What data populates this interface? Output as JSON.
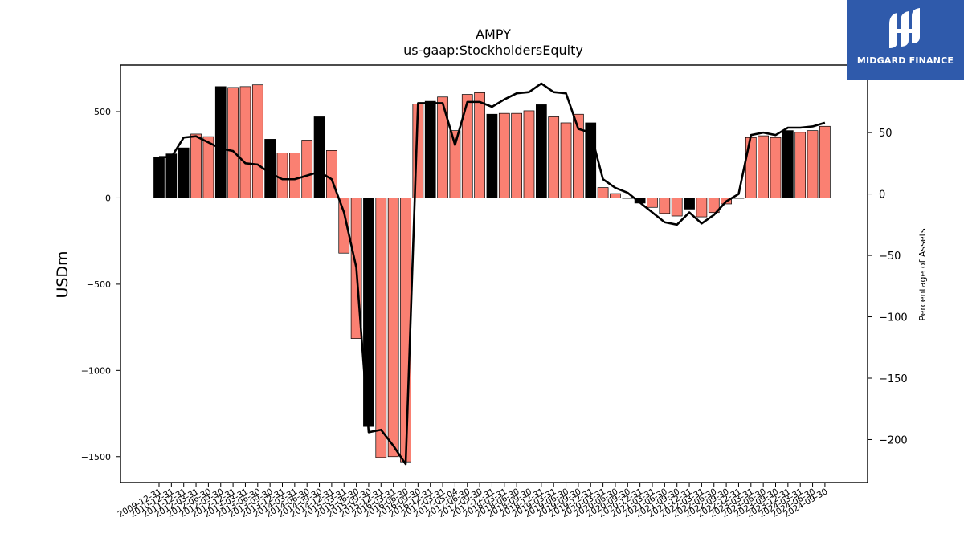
{
  "logo": {
    "text": "MIDGARD FINANCE"
  },
  "colors": {
    "bar_normal": "#fa8072",
    "bar_highlight": "#000000",
    "line": "#000000"
  },
  "chart_data": {
    "type": "bar",
    "title": "AMPY",
    "subtitle": "us-gaap:StockholdersEquity",
    "ylabel": "USDm",
    "y2label": "Percentage of Assets",
    "ylim": [
      -1650,
      770
    ],
    "y2lim": [
      -235,
      105
    ],
    "yticks": [
      -1500,
      -1000,
      -500,
      0,
      500
    ],
    "y2ticks": [
      -200,
      -150,
      -100,
      -50,
      0,
      50
    ],
    "categories": [
      "2009-12-31",
      "2010-12-31",
      "2011-12-31",
      "2012-03-31",
      "2012-06-30",
      "2012-09-30",
      "2012-12-31",
      "2013-03-31",
      "2013-06-30",
      "2013-09-30",
      "2013-12-31",
      "2014-03-31",
      "2014-06-30",
      "2014-09-30",
      "2014-12-31",
      "2015-03-31",
      "2015-06-30",
      "2015-09-30",
      "2015-12-31",
      "2016-03-31",
      "2016-06-30",
      "2016-09-30",
      "2016-12-31",
      "2017-03-31",
      "2017-05-04",
      "2017-06-30",
      "2017-09-30",
      "2017-12-31",
      "2018-03-31",
      "2018-06-30",
      "2018-09-30",
      "2018-12-31",
      "2019-03-31",
      "2019-06-30",
      "2019-09-30",
      "2019-12-31",
      "2020-03-31",
      "2020-06-30",
      "2020-09-30",
      "2020-12-31",
      "2021-03-31",
      "2021-06-30",
      "2021-09-30",
      "2021-12-31",
      "2022-03-31",
      "2022-06-30",
      "2022-09-30",
      "2022-12-31",
      "2023-03-31",
      "2023-06-30",
      "2023-09-30",
      "2023-12-31",
      "2024-03-31",
      "2024-06-30",
      "2024-09-30"
    ],
    "tick_labels": [
      "2009-12-31",
      "2010-12-31",
      "2011-12-31",
      "2012-03-31",
      "2012-06-30",
      "2012-09-30",
      "2012-12-31",
      "2013-03-31",
      "2013-06-30",
      "2013-09-30",
      "2013-12-31",
      "2014-03-31",
      "2014-06-30",
      "2014-09-30",
      "2014-12-31",
      "2015-03-31",
      "2015-06-30",
      "2015-09-30",
      "2015-12-31",
      "2016-03-31",
      "2016-06-30",
      "2016-09-30",
      "2016-12-31",
      "2017-03-31",
      "2017-05-04",
      "2017-06-30",
      "2017-09-30",
      "2017-12-31",
      "2018-03-31",
      "2018-06-30",
      "2018-09-30",
      "2018-12-31",
      "2019-03-31",
      "2019-06-30",
      "2019-09-30",
      "2019-12-31",
      "2020-03-31",
      "2020-06-30",
      "2020-09-30",
      "2020-12-31",
      "2021-03-31",
      "2021-06-30",
      "2021-09-30",
      "2021-12-31",
      "2022-03-31",
      "2022-06-30",
      "2022-09-30",
      "2022-12-31",
      "2023-03-31",
      "2023-06-30",
      "2023-09-30",
      "2023-12-31",
      "2024-03-31",
      "2024-06-30",
      "2024-09-30"
    ],
    "series": [
      {
        "type": "bar",
        "values": [
          235,
          255,
          290,
          370,
          355,
          645,
          640,
          645,
          655,
          340,
          260,
          260,
          335,
          470,
          275,
          -320,
          -815,
          -1325,
          -1505,
          -1500,
          -1530,
          545,
          560,
          585,
          390,
          600,
          610,
          485,
          490,
          490,
          505,
          540,
          470,
          435,
          485,
          435,
          60,
          25,
          0,
          -30,
          -55,
          -90,
          -105,
          -65,
          -110,
          -85,
          -35,
          0,
          350,
          360,
          350,
          390,
          380,
          390,
          415
        ],
        "highlight": [
          1,
          1,
          1,
          0,
          0,
          1,
          0,
          0,
          0,
          1,
          0,
          0,
          0,
          1,
          0,
          0,
          0,
          1,
          0,
          0,
          0,
          0,
          1,
          0,
          0,
          0,
          0,
          1,
          0,
          0,
          0,
          1,
          0,
          0,
          0,
          1,
          0,
          0,
          1,
          1,
          0,
          0,
          0,
          1,
          0,
          0,
          0,
          1,
          0,
          0,
          0,
          1,
          0,
          0,
          0
        ]
      },
      {
        "type": "line",
        "axis": "right",
        "values": [
          30,
          30,
          46,
          47,
          42,
          37,
          35,
          25,
          24,
          17,
          12,
          12,
          15,
          18,
          12,
          -15,
          -60,
          -194,
          -192,
          -205,
          -220,
          74,
          74,
          74,
          40,
          75,
          75,
          71,
          77,
          82,
          83,
          90,
          83,
          82,
          53,
          50,
          12,
          5,
          1,
          -7,
          -15,
          -23,
          -25,
          -15,
          -24,
          -17,
          -6,
          0,
          48,
          50,
          48,
          54,
          54,
          55,
          58
        ]
      }
    ]
  }
}
